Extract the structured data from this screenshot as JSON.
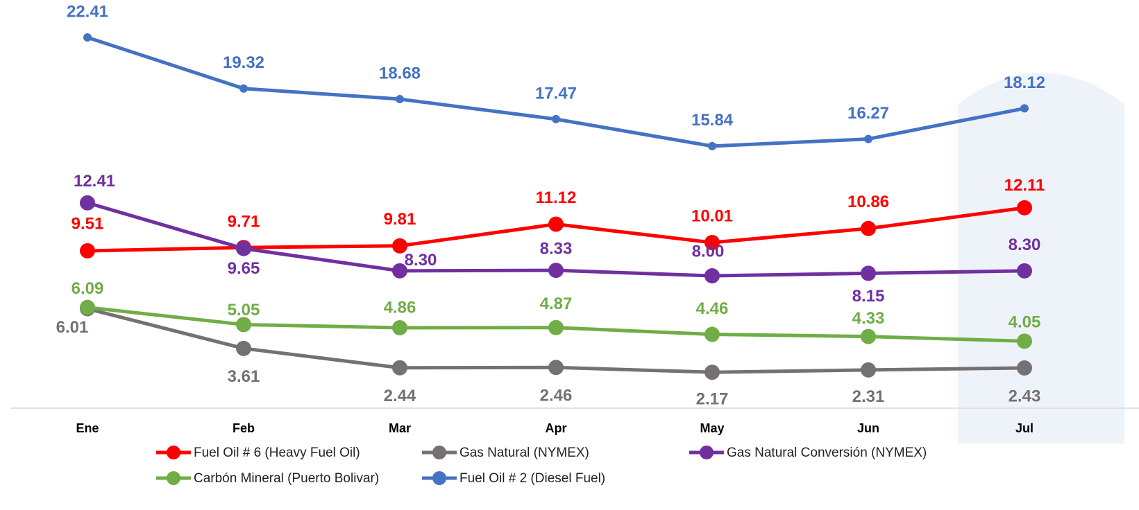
{
  "chart_data": {
    "type": "line",
    "categories": [
      "Ene",
      "Feb",
      "Mar",
      "Apr",
      "May",
      "Jun",
      "Jul"
    ],
    "series": [
      {
        "name": "Fuel Oil # 6 (Heavy Fuel Oil)",
        "color": "#ff0000",
        "values": [
          9.51,
          9.71,
          9.81,
          11.12,
          10.01,
          10.86,
          12.11
        ],
        "value_labels": [
          "9.51",
          "9.71",
          "9.81",
          "11.12",
          "10.01",
          "10.86",
          "12.11"
        ]
      },
      {
        "name": "Gas Natural (NYMEX)",
        "color": "#767171",
        "values": [
          6.01,
          3.61,
          2.44,
          2.46,
          2.17,
          2.31,
          2.43
        ],
        "value_labels": [
          "6.01",
          "3.61",
          "2.44",
          "2.46",
          "2.17",
          "2.31",
          "2.43"
        ]
      },
      {
        "name": "Gas Natural Conversión (NYMEX)",
        "color": "#7030a0",
        "values": [
          12.41,
          9.65,
          8.3,
          8.33,
          8.0,
          8.15,
          8.3
        ],
        "value_labels": [
          "12.41",
          "9.65",
          "8.30",
          "8.33",
          "8.00",
          "8.15",
          "8.30"
        ]
      },
      {
        "name": "Carbón Mineral (Puerto Bolivar)",
        "color": "#70ad47",
        "values": [
          6.09,
          5.05,
          4.86,
          4.87,
          4.46,
          4.33,
          4.05
        ],
        "value_labels": [
          "6.09",
          "5.05",
          "4.86",
          "4.87",
          "4.46",
          "4.33",
          "4.05"
        ]
      },
      {
        "name": "Fuel Oil # 2 (Diesel Fuel)",
        "color": "#4472c4",
        "values": [
          22.41,
          19.32,
          18.68,
          17.47,
          15.84,
          16.27,
          18.12
        ],
        "value_labels": [
          "22.41",
          "19.32",
          "18.68",
          "17.47",
          "15.84",
          "16.27",
          "18.12"
        ]
      }
    ]
  }
}
